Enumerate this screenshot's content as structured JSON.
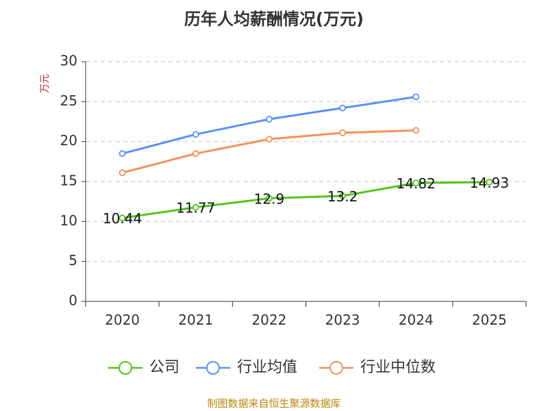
{
  "title": "历年人均薪酬情况(万元)",
  "source": "制图数据来自恒生聚源数据库",
  "chart_data": {
    "type": "line",
    "title": "历年人均薪酬情况(万元)",
    "ylabel": "万元",
    "xlabel": "",
    "categories": [
      "2020",
      "2021",
      "2022",
      "2023",
      "2024",
      "2025"
    ],
    "ylim": [
      0,
      30
    ],
    "yticks": [
      0,
      5,
      10,
      15,
      20,
      25,
      30
    ],
    "grid": true,
    "legend_position": "bottom",
    "series": [
      {
        "name": "公司",
        "color": "#52c41a",
        "values": [
          10.44,
          11.77,
          12.9,
          13.2,
          14.82,
          14.93
        ],
        "labels": [
          "10.44",
          "11.77",
          "12.9",
          "13.2",
          "14.82",
          "14.93"
        ]
      },
      {
        "name": "行业均值",
        "color": "#5b8ff9",
        "values": [
          18.5,
          20.9,
          22.8,
          24.2,
          25.6,
          null
        ],
        "labels": null
      },
      {
        "name": "行业中位数",
        "color": "#f6905a",
        "values": [
          16.1,
          18.5,
          20.3,
          21.1,
          21.4,
          null
        ],
        "labels": null
      }
    ]
  }
}
